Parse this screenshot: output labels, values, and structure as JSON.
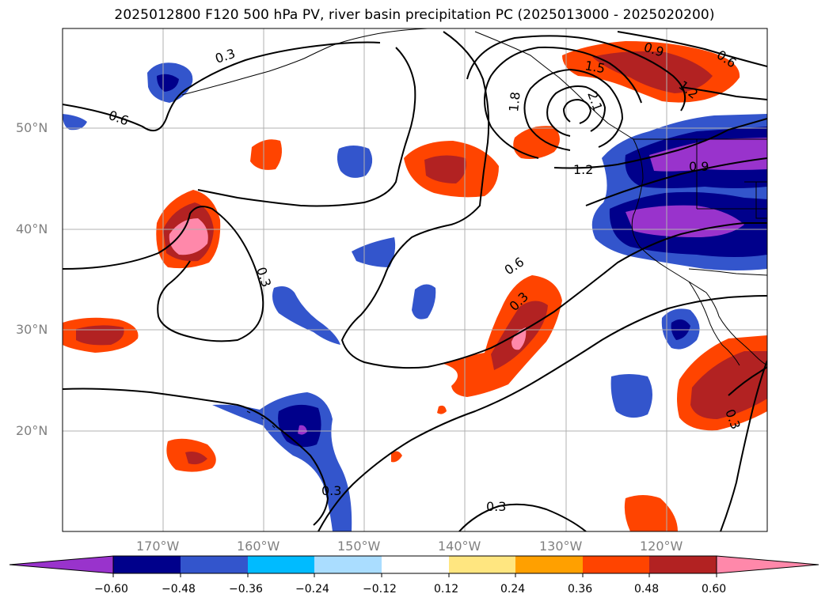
{
  "title": "2025012800 F120 500 hPa PV, river basin precipitation PC (2025013000 - 2025020200)",
  "lat_labels": [
    "50°N",
    "40°N",
    "30°N",
    "20°N"
  ],
  "lon_labels": [
    "170°W",
    "160°W",
    "150°W",
    "140°W",
    "130°W",
    "120°W"
  ],
  "contour_labels": [
    "0.3",
    "0.6",
    "0.9",
    "1.2",
    "1.5",
    "1.8",
    "2.1",
    "0.3",
    "0.6",
    "0.3",
    "0.3",
    "0.9",
    "1.2",
    "0.6",
    "0.3",
    "0.3"
  ],
  "colorbar": {
    "tick_labels": [
      "−0.60",
      "−0.48",
      "−0.36",
      "−0.24",
      "−0.12",
      "0.12",
      "0.24",
      "0.36",
      "0.48",
      "0.60"
    ],
    "colors": [
      "#9933cc",
      "#00008b",
      "#3355cc",
      "#00bbff",
      "#aaddff",
      "#ffffff",
      "#ffe680",
      "#ffa000",
      "#ff4400",
      "#b22222",
      "#ff88aa"
    ]
  },
  "map_colors": {
    "ocean": "#ffffff",
    "grid": "#b0b0b0",
    "contour": "#000000",
    "coast": "#000000"
  }
}
